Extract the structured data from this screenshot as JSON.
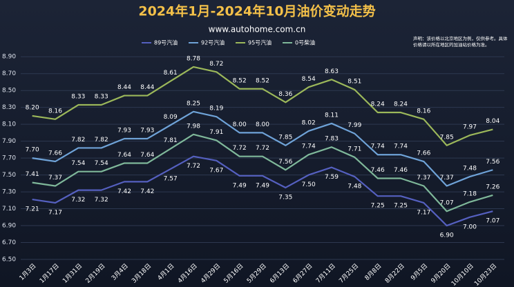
{
  "chart_data": {
    "type": "line",
    "title": "2024年1月-2024年10月油价变动走势",
    "subtitle": "www.autohome.com.cn",
    "note": "声明：该价格以北京地区为例，仅供参考。具体价格请以所在地区的加油站价格为准。",
    "categories": [
      "1月3日",
      "1月17日",
      "1月31日",
      "2月19日",
      "3月4日",
      "3月18日",
      "4月1日",
      "4月16日",
      "4月29日",
      "5月16日",
      "5月29日",
      "6月13日",
      "6月27日",
      "7月11日",
      "7月25日",
      "8月8日",
      "8月22日",
      "9月5日",
      "9月20日",
      "10月10日",
      "10月23日"
    ],
    "series": [
      {
        "name": "89号汽油",
        "color": "#5560c0",
        "label_pos": "below",
        "values": [
          7.21,
          7.17,
          7.32,
          7.32,
          7.42,
          7.42,
          7.57,
          7.72,
          7.67,
          7.49,
          7.49,
          7.35,
          7.5,
          7.59,
          7.48,
          7.25,
          7.25,
          7.17,
          6.9,
          7.0,
          7.07
        ],
        "value_labels": [
          "7.21",
          "7.17",
          "7.32",
          "7.32",
          "7.42",
          "7.42",
          "7.57",
          "7.72",
          "7.67",
          "7.49",
          "7.49",
          "7.35",
          "7.50",
          "7.59",
          "7.48",
          "7.25",
          "7.25",
          "7.17",
          "6.90",
          "7.00",
          "7.07"
        ]
      },
      {
        "name": "92号汽油",
        "color": "#6fa3d8",
        "label_pos": "above",
        "values": [
          7.7,
          7.66,
          7.82,
          7.82,
          7.93,
          7.93,
          8.09,
          8.25,
          8.19,
          8.0,
          8.0,
          7.85,
          8.02,
          8.11,
          7.99,
          7.74,
          7.74,
          7.66,
          7.37,
          7.48,
          7.56
        ],
        "value_labels": [
          "7.70",
          "7.66",
          "7.82",
          "7.82",
          "7.93",
          "7.93",
          "8.09",
          "8.25",
          "8.19",
          "8.00",
          "8.00",
          "7.85",
          "8.02",
          "8.11",
          "7.99",
          "7.74",
          "7.74",
          "7.66",
          "7.37",
          "7.48",
          "7.56"
        ]
      },
      {
        "name": "95号汽油",
        "color": "#9cb85a",
        "label_pos": "above",
        "values": [
          8.2,
          8.16,
          8.33,
          8.33,
          8.44,
          8.44,
          8.61,
          8.78,
          8.72,
          8.52,
          8.52,
          8.36,
          8.54,
          8.63,
          8.51,
          8.24,
          8.24,
          8.16,
          7.85,
          7.97,
          8.04
        ],
        "value_labels": [
          "8.20",
          "8.16",
          "8.33",
          "8.33",
          "8.44",
          "8.44",
          "8.61",
          "8.78",
          "8.72",
          "8.52",
          "8.52",
          "8.36",
          "8.54",
          "8.63",
          "8.51",
          "8.24",
          "8.24",
          "8.16",
          "7.85",
          "7.97",
          "8.04"
        ]
      },
      {
        "name": "0号柴油",
        "color": "#7fb89a",
        "label_pos": "above",
        "values": [
          7.41,
          7.37,
          7.54,
          7.54,
          7.64,
          7.64,
          7.81,
          7.98,
          7.91,
          7.72,
          7.72,
          7.56,
          7.74,
          7.83,
          7.71,
          7.46,
          7.46,
          7.37,
          7.07,
          7.18,
          7.26
        ],
        "value_labels": [
          "7.41",
          "7.37",
          "7.54",
          "7.54",
          "7.64",
          "7.64",
          "7.81",
          "7.98",
          "7.91",
          "7.72",
          "7.72",
          "7.56",
          "7.74",
          "7.83",
          "7.71",
          "7.46",
          "7.46",
          "7.37",
          "7.07",
          "7.18",
          "7.26"
        ]
      }
    ],
    "ylim": [
      6.5,
      9.0
    ],
    "yticks": [
      {
        "value": 6.5,
        "label": "6.50"
      },
      {
        "value": 6.7,
        "label": "6.70"
      },
      {
        "value": 6.9,
        "label": "6.90"
      },
      {
        "value": 7.1,
        "label": "7.10"
      },
      {
        "value": 7.3,
        "label": "7.30"
      },
      {
        "value": 7.5,
        "label": "7.50"
      },
      {
        "value": 7.7,
        "label": "7.70"
      },
      {
        "value": 7.9,
        "label": "7.90"
      },
      {
        "value": 8.1,
        "label": "8.10"
      },
      {
        "value": 8.3,
        "label": "8.30"
      },
      {
        "value": 8.5,
        "label": "8.50"
      },
      {
        "value": 8.7,
        "label": "8.70"
      },
      {
        "value": 8.9,
        "label": "8.90"
      }
    ],
    "grid": true
  }
}
